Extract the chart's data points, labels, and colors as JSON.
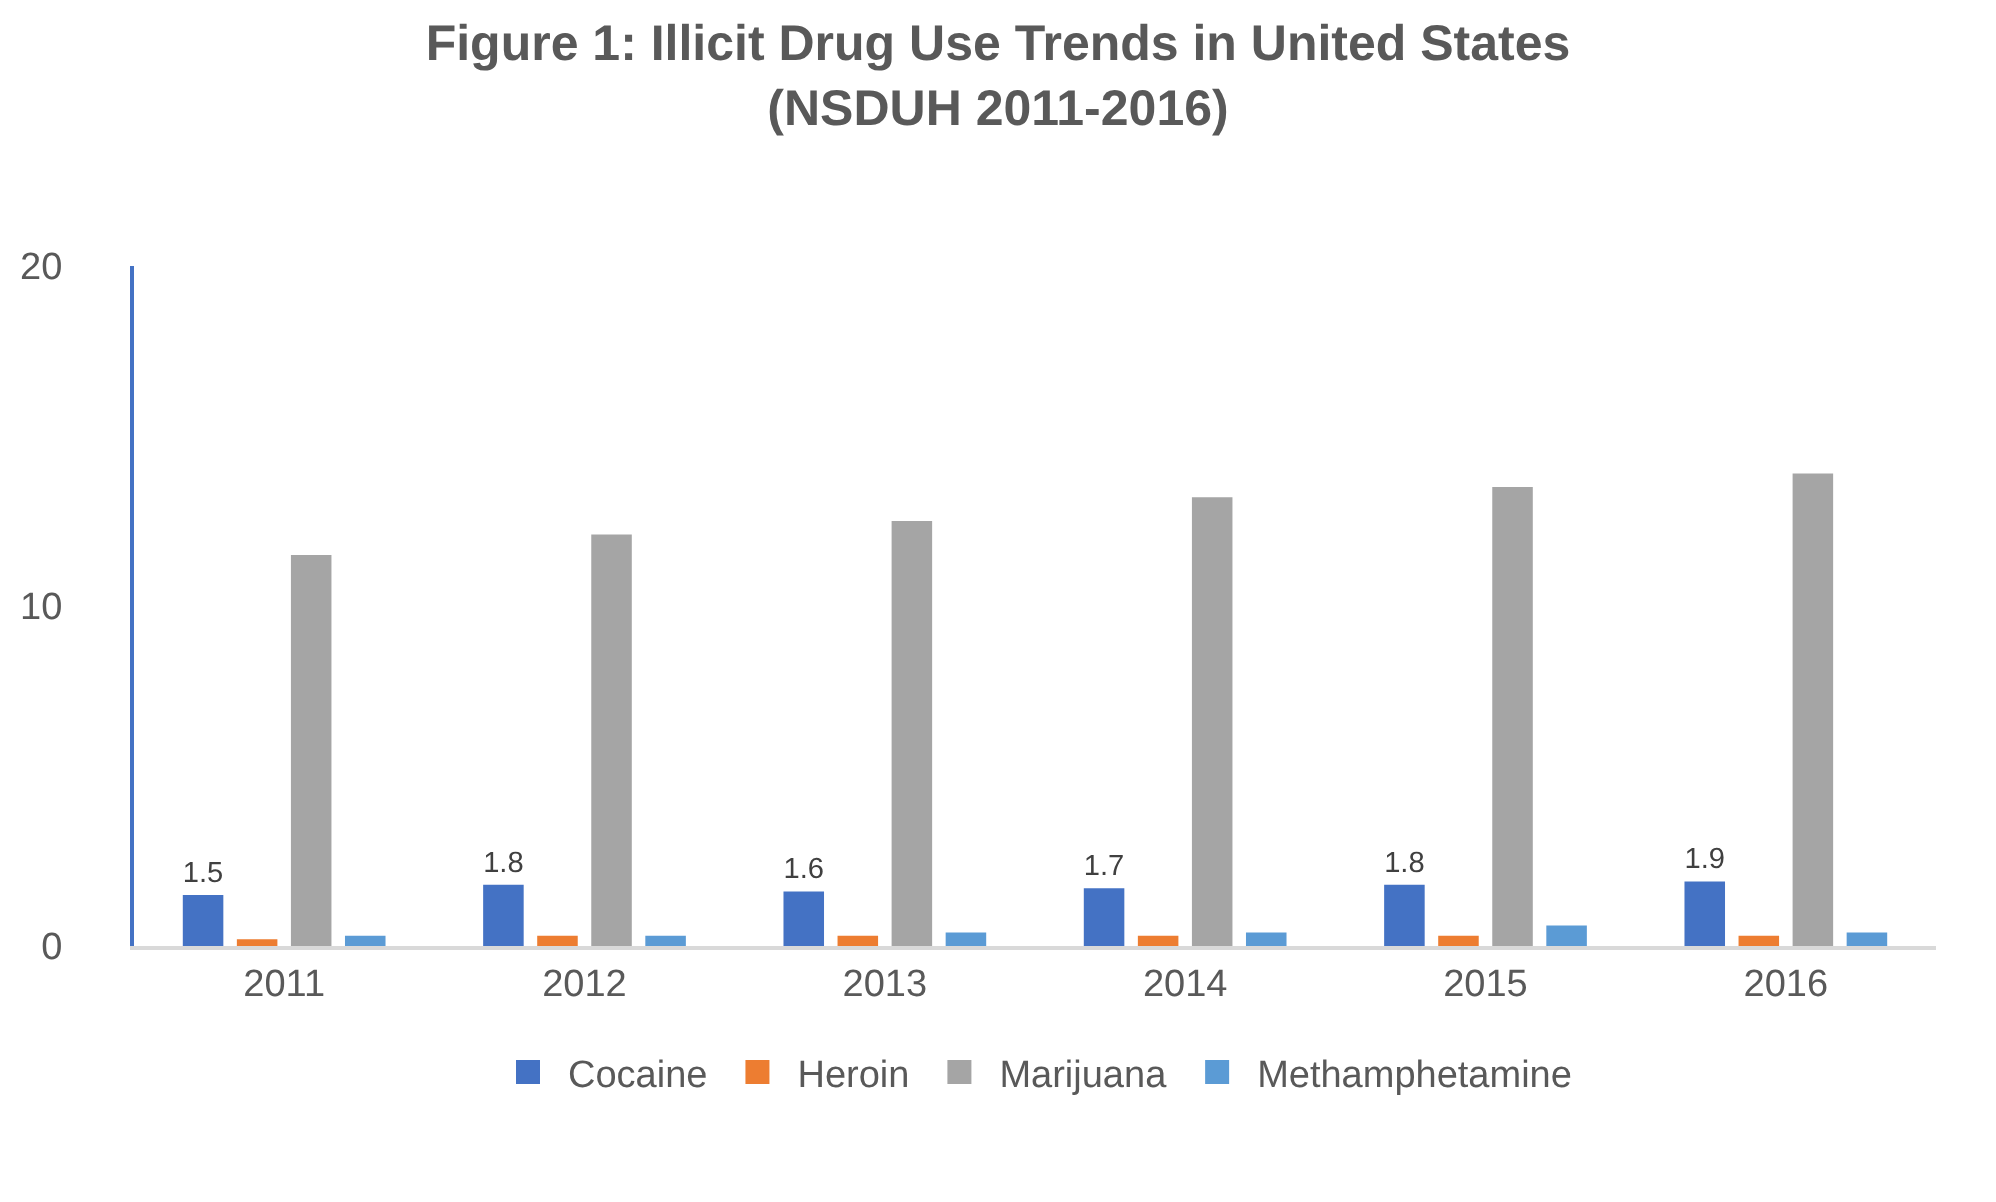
{
  "chart_data": {
    "type": "bar",
    "title": "Figure 1: Illicit Drug Use Trends in United States\n(NSDUH 2011-2016)",
    "categories": [
      "2011",
      "2012",
      "2013",
      "2014",
      "2015",
      "2016"
    ],
    "series": [
      {
        "name": "Cocaine",
        "color": "#4472c4",
        "values": [
          1.5,
          1.8,
          1.6,
          1.7,
          1.8,
          1.9
        ],
        "value_labels": [
          "1.5",
          "1.8",
          "1.6",
          "1.7",
          "1.8",
          "1.9"
        ]
      },
      {
        "name": "Heroin",
        "color": "#ed7d31",
        "values": [
          0.2,
          0.3,
          0.3,
          0.3,
          0.3,
          0.3
        ]
      },
      {
        "name": "Marijuana",
        "color": "#a5a5a5",
        "values": [
          11.5,
          12.1,
          12.5,
          13.2,
          13.5,
          13.9
        ]
      },
      {
        "name": "Methamphetamine",
        "color": "#5b9bd5",
        "values": [
          0.3,
          0.3,
          0.4,
          0.4,
          0.6,
          0.4
        ]
      }
    ],
    "ylim": [
      0,
      20
    ],
    "yticks": [
      0,
      10,
      20
    ],
    "grid": false,
    "legend": "bottom"
  }
}
